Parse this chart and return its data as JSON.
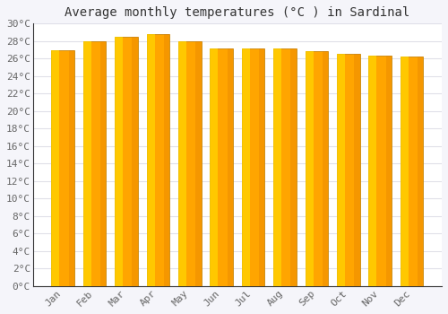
{
  "title": "Average monthly temperatures (°C ) in Sardinal",
  "months": [
    "Jan",
    "Feb",
    "Mar",
    "Apr",
    "May",
    "Jun",
    "Jul",
    "Aug",
    "Sep",
    "Oct",
    "Nov",
    "Dec"
  ],
  "values": [
    27.0,
    28.0,
    28.5,
    28.8,
    28.0,
    27.2,
    27.2,
    27.2,
    26.8,
    26.5,
    26.3,
    26.2
  ],
  "bar_color_main": "#FFA500",
  "bar_color_light": "#FFD700",
  "bar_edge_color": "#C8860A",
  "background_color": "#f5f5fa",
  "plot_bg_color": "#ffffff",
  "ylim": [
    0,
    30
  ],
  "ytick_step": 2,
  "title_fontsize": 10,
  "tick_fontsize": 8,
  "grid_color": "#e0e0e8",
  "axis_color": "#333333"
}
